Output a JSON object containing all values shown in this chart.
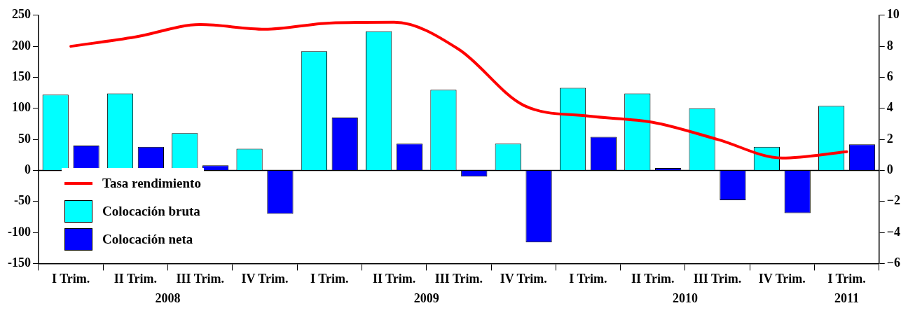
{
  "chart_data": {
    "type": "bar",
    "categories": [
      "I Trim.",
      "II Trim.",
      "III Trim.",
      "IV Trim.",
      "I Trim.",
      "II Trim.",
      "III Trim.",
      "IV Trim.",
      "I Trim.",
      "II Trim.",
      "III Trim.",
      "IV Trim.",
      "I Trim."
    ],
    "series": [
      {
        "name": "Tasa rendimiento",
        "type": "line",
        "axis": "y2",
        "color": "#ff0000",
        "values": [
          8.0,
          8.6,
          9.4,
          9.1,
          9.5,
          9.55,
          7.8,
          4.2,
          3.5,
          3.1,
          2.0,
          0.8,
          1.2
        ]
      },
      {
        "name": "Colocación bruta",
        "color": "#00ffff",
        "values": [
          122,
          124,
          60,
          35,
          192,
          224,
          130,
          43,
          133,
          124,
          100,
          38,
          104
        ]
      },
      {
        "name": "Colocación neta",
        "color": "#0000ff",
        "values": [
          40,
          38,
          8,
          -70,
          85,
          43,
          -10,
          -116,
          54,
          4,
          -48,
          -69,
          42
        ]
      }
    ],
    "ylim": [
      -150,
      250
    ],
    "yticks": [
      -150,
      -100,
      -50,
      0,
      50,
      100,
      150,
      200,
      250
    ],
    "y2lim": [
      -6,
      10
    ],
    "y2ticks": [
      -6,
      -4,
      -2,
      0,
      2,
      4,
      6,
      8,
      10
    ],
    "ref_lines": [
      {
        "axis": "y",
        "value": 0,
        "color": "#000000"
      }
    ],
    "annotations": [
      "2008",
      "2009",
      "2010",
      "2011"
    ],
    "grid": false,
    "legend": "bottom left"
  }
}
